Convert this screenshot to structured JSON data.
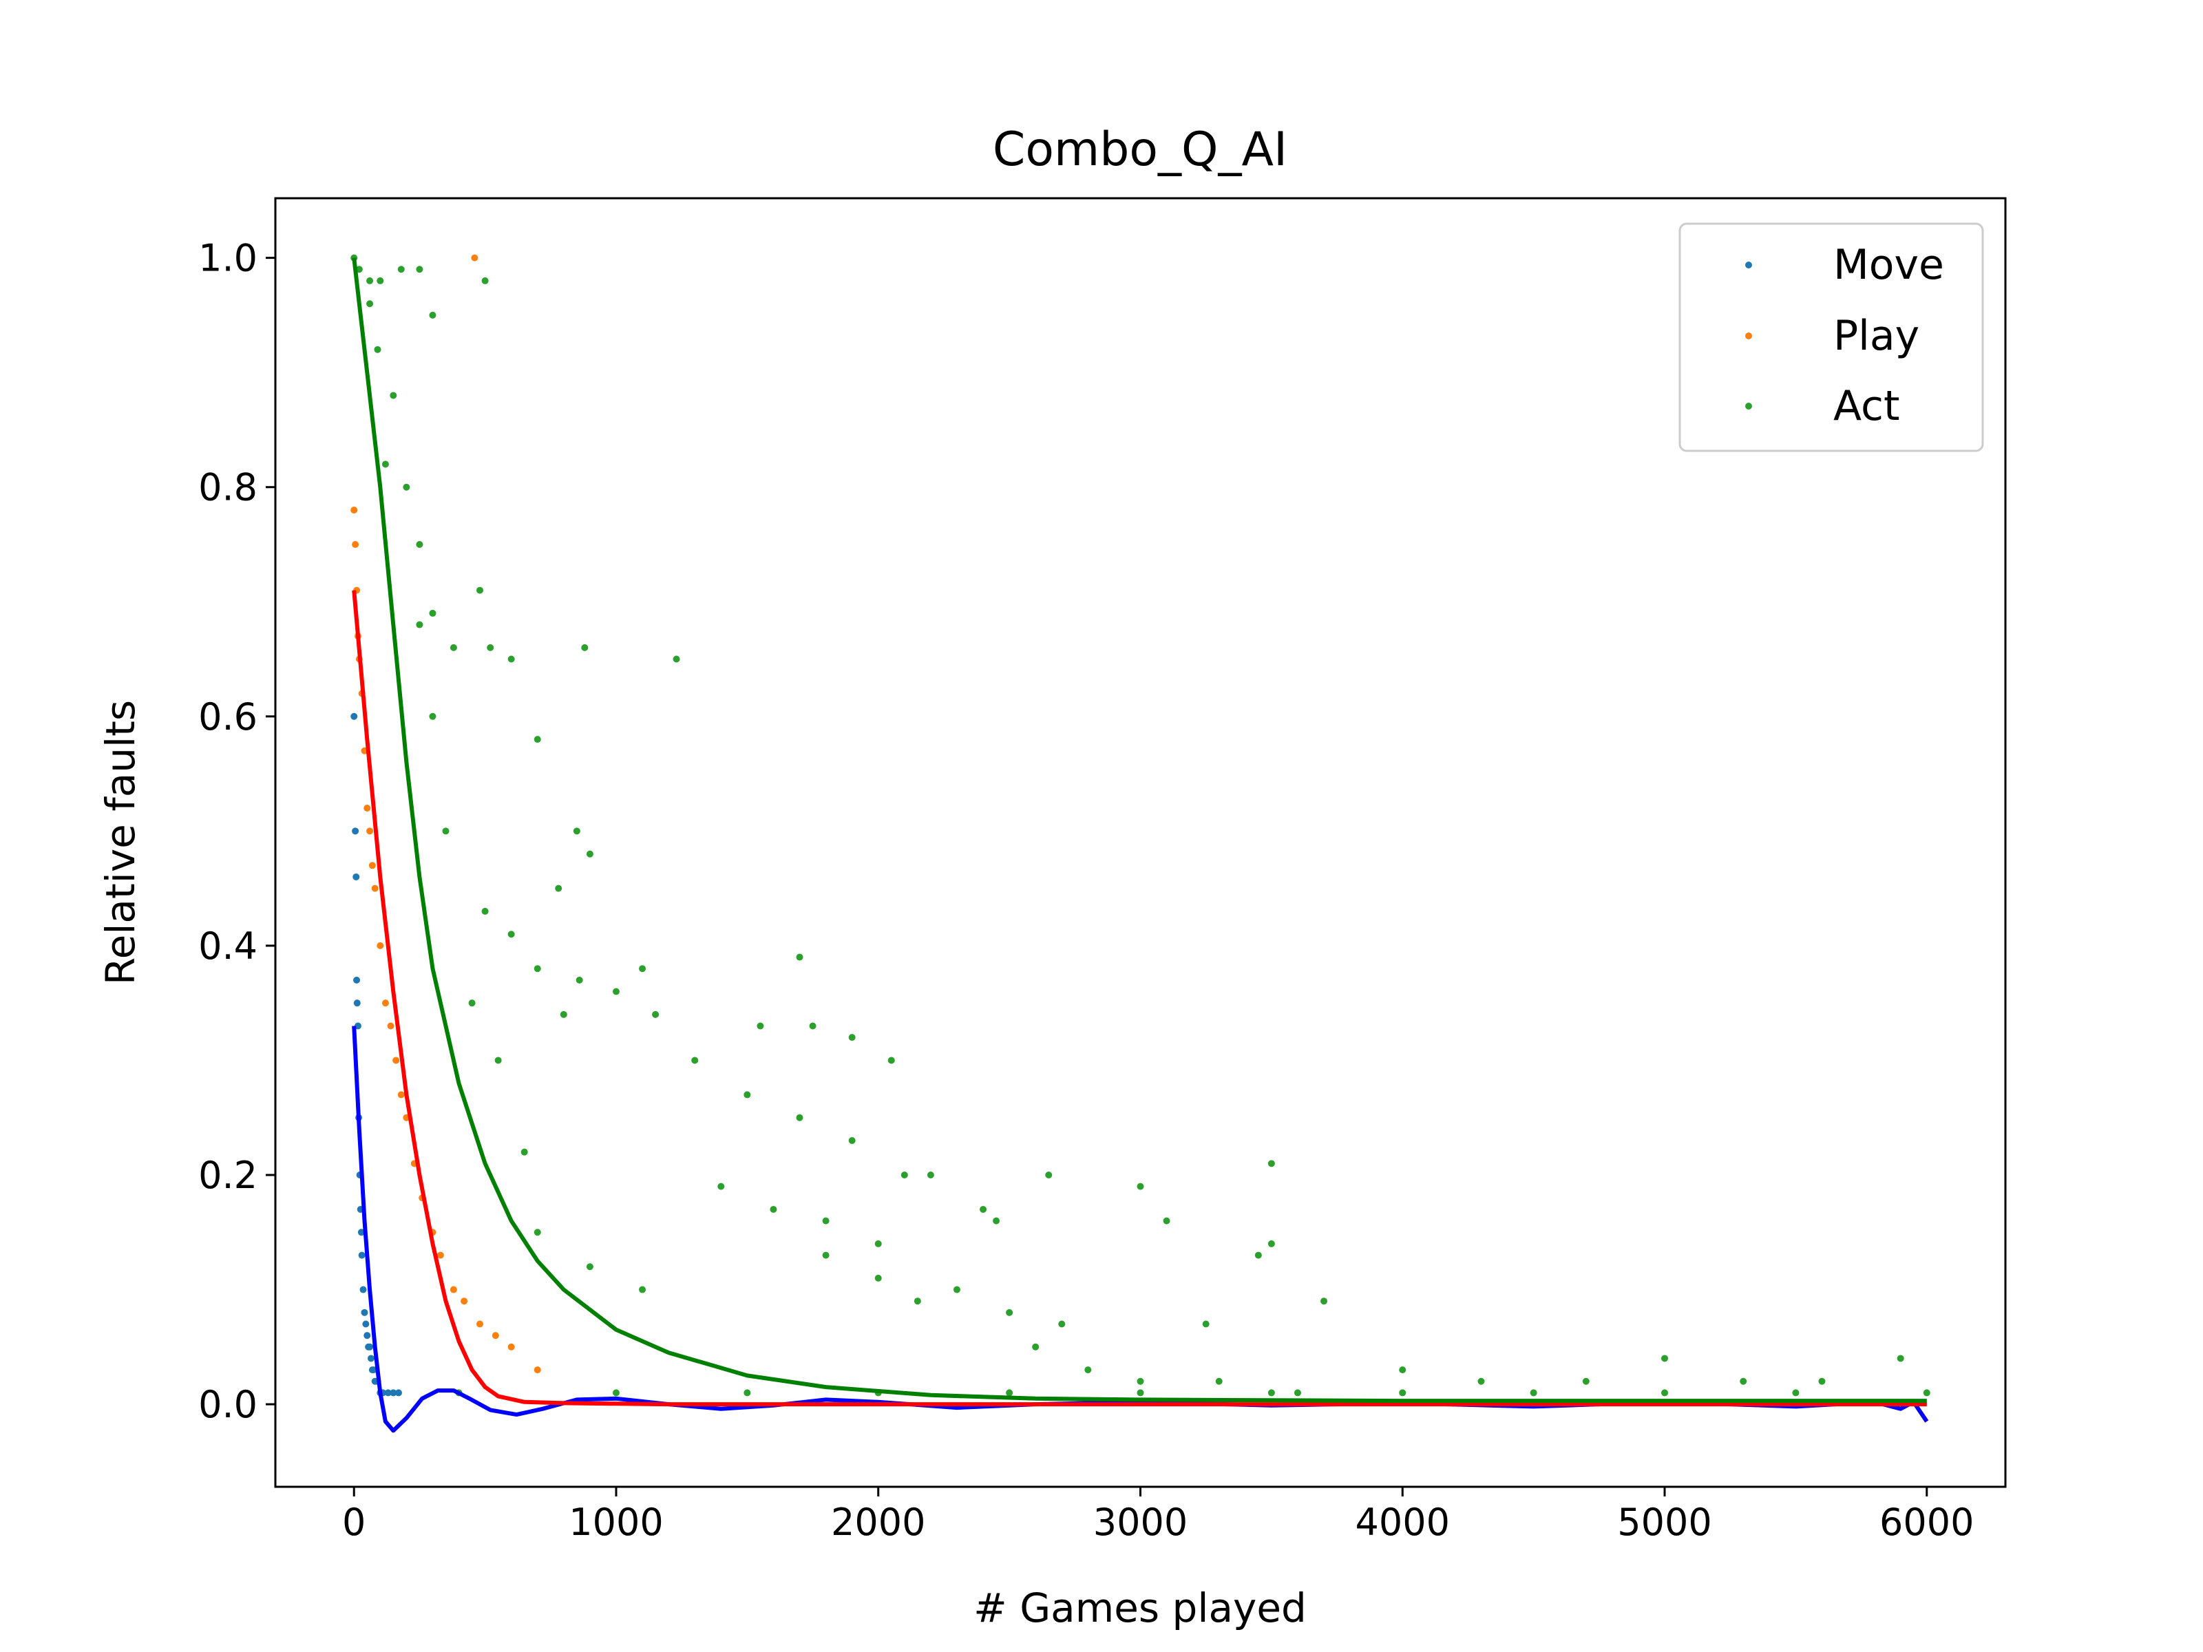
{
  "chart_data": {
    "type": "scatter",
    "title": "Combo_Q_AI",
    "xlabel": "# Games played",
    "ylabel": "Relative faults",
    "xlim": [
      -300,
      6300
    ],
    "ylim": [
      -0.072,
      1.052
    ],
    "x_ticks": [
      0,
      1000,
      2000,
      3000,
      4000,
      5000,
      6000
    ],
    "x_tick_labels": [
      "0",
      "1000",
      "2000",
      "3000",
      "4000",
      "5000",
      "6000"
    ],
    "y_ticks": [
      0.0,
      0.2,
      0.4,
      0.6,
      0.8,
      1.0
    ],
    "y_tick_labels": [
      "0.0",
      "0.2",
      "0.4",
      "0.6",
      "0.8",
      "1.0"
    ],
    "grid": false,
    "legend": {
      "position": "top-right"
    },
    "series": [
      {
        "name": "Move",
        "kind": "scatter",
        "color": "#1f77b4",
        "points": [
          [
            0,
            0.6
          ],
          [
            5,
            0.5
          ],
          [
            8,
            0.46
          ],
          [
            10,
            0.37
          ],
          [
            12,
            0.35
          ],
          [
            15,
            0.33
          ],
          [
            18,
            0.25
          ],
          [
            22,
            0.2
          ],
          [
            25,
            0.17
          ],
          [
            28,
            0.15
          ],
          [
            30,
            0.13
          ],
          [
            35,
            0.1
          ],
          [
            40,
            0.08
          ],
          [
            45,
            0.07
          ],
          [
            50,
            0.06
          ],
          [
            55,
            0.05
          ],
          [
            60,
            0.05
          ],
          [
            65,
            0.04
          ],
          [
            70,
            0.03
          ],
          [
            75,
            0.03
          ],
          [
            80,
            0.02
          ],
          [
            90,
            0.02
          ],
          [
            100,
            0.01
          ],
          [
            110,
            0.01
          ],
          [
            130,
            0.01
          ],
          [
            150,
            0.01
          ],
          [
            170,
            0.01
          ]
        ]
      },
      {
        "name": "Play",
        "kind": "scatter",
        "color": "#ff7f0e",
        "points": [
          [
            460,
            1.0
          ],
          [
            0,
            0.78
          ],
          [
            5,
            0.75
          ],
          [
            10,
            0.71
          ],
          [
            15,
            0.67
          ],
          [
            20,
            0.65
          ],
          [
            30,
            0.62
          ],
          [
            40,
            0.57
          ],
          [
            50,
            0.52
          ],
          [
            60,
            0.5
          ],
          [
            70,
            0.47
          ],
          [
            80,
            0.45
          ],
          [
            100,
            0.4
          ],
          [
            120,
            0.35
          ],
          [
            140,
            0.33
          ],
          [
            160,
            0.3
          ],
          [
            180,
            0.27
          ],
          [
            200,
            0.25
          ],
          [
            230,
            0.21
          ],
          [
            260,
            0.18
          ],
          [
            300,
            0.15
          ],
          [
            330,
            0.13
          ],
          [
            380,
            0.1
          ],
          [
            420,
            0.09
          ],
          [
            480,
            0.07
          ],
          [
            540,
            0.06
          ],
          [
            600,
            0.05
          ],
          [
            700,
            0.03
          ]
        ]
      },
      {
        "name": "Act",
        "kind": "scatter",
        "color": "#2ca02c",
        "points": [
          [
            0,
            1.0
          ],
          [
            20,
            0.99
          ],
          [
            60,
            0.98
          ],
          [
            100,
            0.98
          ],
          [
            180,
            0.99
          ],
          [
            250,
            0.99
          ],
          [
            500,
            0.98
          ],
          [
            300,
            0.95
          ],
          [
            120,
            0.82
          ],
          [
            200,
            0.8
          ],
          [
            250,
            0.75
          ],
          [
            480,
            0.71
          ],
          [
            300,
            0.69
          ],
          [
            380,
            0.66
          ],
          [
            520,
            0.66
          ],
          [
            600,
            0.65
          ],
          [
            880,
            0.66
          ],
          [
            1230,
            0.65
          ],
          [
            700,
            0.58
          ],
          [
            850,
            0.5
          ],
          [
            900,
            0.48
          ],
          [
            780,
            0.45
          ],
          [
            500,
            0.43
          ],
          [
            600,
            0.41
          ],
          [
            700,
            0.38
          ],
          [
            860,
            0.37
          ],
          [
            1000,
            0.36
          ],
          [
            1100,
            0.38
          ],
          [
            1700,
            0.39
          ],
          [
            800,
            0.34
          ],
          [
            1150,
            0.34
          ],
          [
            1550,
            0.33
          ],
          [
            1750,
            0.33
          ],
          [
            1900,
            0.32
          ],
          [
            2050,
            0.3
          ],
          [
            1300,
            0.3
          ],
          [
            1500,
            0.27
          ],
          [
            1700,
            0.25
          ],
          [
            1900,
            0.23
          ],
          [
            2100,
            0.2
          ],
          [
            2200,
            0.2
          ],
          [
            2650,
            0.2
          ],
          [
            3000,
            0.19
          ],
          [
            3500,
            0.21
          ],
          [
            1400,
            0.19
          ],
          [
            1600,
            0.17
          ],
          [
            1800,
            0.16
          ],
          [
            2000,
            0.14
          ],
          [
            2400,
            0.17
          ],
          [
            2450,
            0.16
          ],
          [
            3100,
            0.16
          ],
          [
            3500,
            0.14
          ],
          [
            3450,
            0.13
          ],
          [
            1800,
            0.13
          ],
          [
            2000,
            0.11
          ],
          [
            2150,
            0.09
          ],
          [
            2300,
            0.1
          ],
          [
            2500,
            0.08
          ],
          [
            2700,
            0.07
          ],
          [
            3250,
            0.07
          ],
          [
            3700,
            0.09
          ],
          [
            2600,
            0.05
          ],
          [
            2800,
            0.03
          ],
          [
            3000,
            0.02
          ],
          [
            3300,
            0.02
          ],
          [
            3600,
            0.01
          ],
          [
            4000,
            0.03
          ],
          [
            4300,
            0.02
          ],
          [
            4700,
            0.02
          ],
          [
            5000,
            0.04
          ],
          [
            5300,
            0.02
          ],
          [
            5600,
            0.02
          ],
          [
            5900,
            0.04
          ],
          [
            6000,
            0.01
          ],
          [
            400,
            0.01
          ],
          [
            1000,
            0.01
          ],
          [
            1500,
            0.01
          ],
          [
            2000,
            0.01
          ],
          [
            2500,
            0.01
          ],
          [
            3000,
            0.01
          ],
          [
            3500,
            0.01
          ],
          [
            4000,
            0.01
          ],
          [
            4500,
            0.01
          ],
          [
            5000,
            0.01
          ],
          [
            5500,
            0.01
          ],
          [
            900,
            0.12
          ],
          [
            1100,
            0.1
          ],
          [
            700,
            0.15
          ],
          [
            650,
            0.22
          ],
          [
            550,
            0.3
          ],
          [
            450,
            0.35
          ],
          [
            350,
            0.5
          ],
          [
            300,
            0.6
          ],
          [
            250,
            0.68
          ],
          [
            150,
            0.88
          ],
          [
            90,
            0.92
          ],
          [
            60,
            0.96
          ]
        ]
      },
      {
        "name": "",
        "kind": "line",
        "color": "#0000ff",
        "points": [
          [
            0,
            0.33
          ],
          [
            20,
            0.24
          ],
          [
            40,
            0.16
          ],
          [
            60,
            0.1
          ],
          [
            80,
            0.05
          ],
          [
            100,
            0.01
          ],
          [
            120,
            -0.015
          ],
          [
            150,
            -0.023
          ],
          [
            200,
            -0.012
          ],
          [
            260,
            0.005
          ],
          [
            320,
            0.012
          ],
          [
            380,
            0.012
          ],
          [
            440,
            0.005
          ],
          [
            520,
            -0.005
          ],
          [
            620,
            -0.009
          ],
          [
            720,
            -0.004
          ],
          [
            850,
            0.004
          ],
          [
            1000,
            0.005
          ],
          [
            1200,
            0.0
          ],
          [
            1400,
            -0.004
          ],
          [
            1600,
            -0.001
          ],
          [
            1800,
            0.004
          ],
          [
            2000,
            0.002
          ],
          [
            2300,
            -0.003
          ],
          [
            2600,
            0.0
          ],
          [
            3000,
            0.002
          ],
          [
            3500,
            -0.001
          ],
          [
            4000,
            0.001
          ],
          [
            4500,
            -0.002
          ],
          [
            5000,
            0.002
          ],
          [
            5500,
            -0.002
          ],
          [
            5800,
            0.002
          ],
          [
            5900,
            -0.004
          ],
          [
            5950,
            0.002
          ],
          [
            6000,
            -0.015
          ]
        ]
      },
      {
        "name": "",
        "kind": "line",
        "color": "#ff0000",
        "points": [
          [
            0,
            0.71
          ],
          [
            50,
            0.58
          ],
          [
            100,
            0.46
          ],
          [
            150,
            0.36
          ],
          [
            200,
            0.27
          ],
          [
            250,
            0.2
          ],
          [
            300,
            0.14
          ],
          [
            350,
            0.09
          ],
          [
            400,
            0.055
          ],
          [
            450,
            0.03
          ],
          [
            500,
            0.015
          ],
          [
            550,
            0.007
          ],
          [
            650,
            0.002
          ],
          [
            800,
            0.001
          ],
          [
            1200,
            0.0
          ],
          [
            2000,
            0.0
          ],
          [
            3000,
            0.0
          ],
          [
            4000,
            0.0
          ],
          [
            5000,
            0.0
          ],
          [
            6000,
            0.0
          ]
        ]
      },
      {
        "name": "",
        "kind": "line",
        "color": "#008000",
        "points": [
          [
            0,
            1.0
          ],
          [
            50,
            0.9
          ],
          [
            100,
            0.8
          ],
          [
            150,
            0.68
          ],
          [
            200,
            0.56
          ],
          [
            250,
            0.46
          ],
          [
            300,
            0.38
          ],
          [
            400,
            0.28
          ],
          [
            500,
            0.21
          ],
          [
            600,
            0.16
          ],
          [
            700,
            0.125
          ],
          [
            800,
            0.1
          ],
          [
            1000,
            0.065
          ],
          [
            1200,
            0.045
          ],
          [
            1500,
            0.025
          ],
          [
            1800,
            0.015
          ],
          [
            2200,
            0.008
          ],
          [
            2600,
            0.005
          ],
          [
            3000,
            0.004
          ],
          [
            4000,
            0.003
          ],
          [
            5000,
            0.003
          ],
          [
            6000,
            0.003
          ]
        ]
      }
    ]
  }
}
